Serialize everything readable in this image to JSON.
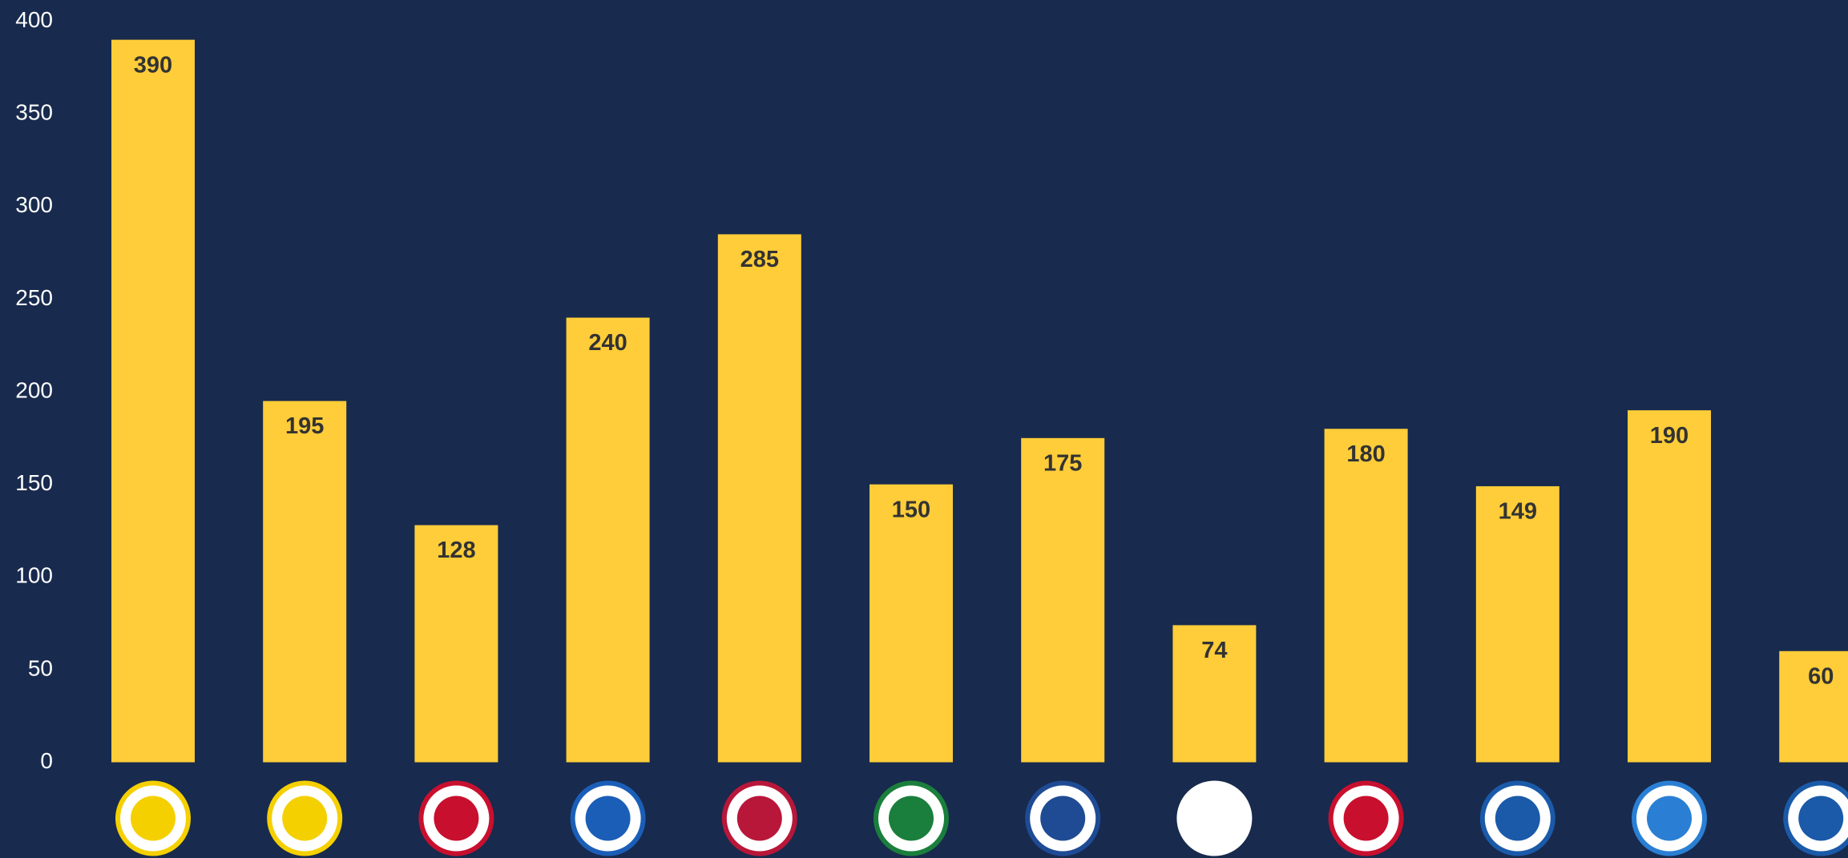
{
  "chart_data": {
    "type": "bar",
    "categories": [
      null,
      null,
      null,
      null,
      null,
      null,
      null,
      null,
      null,
      null,
      null,
      null
    ],
    "values": [
      390,
      195,
      128,
      240,
      285,
      150,
      175,
      74,
      180,
      149,
      190,
      60
    ],
    "color": "#fecd39",
    "ylim": [
      0,
      400
    ],
    "yticks": [
      0,
      50,
      100,
      150,
      200,
      250,
      300,
      350,
      400
    ],
    "grid": false
  }
}
